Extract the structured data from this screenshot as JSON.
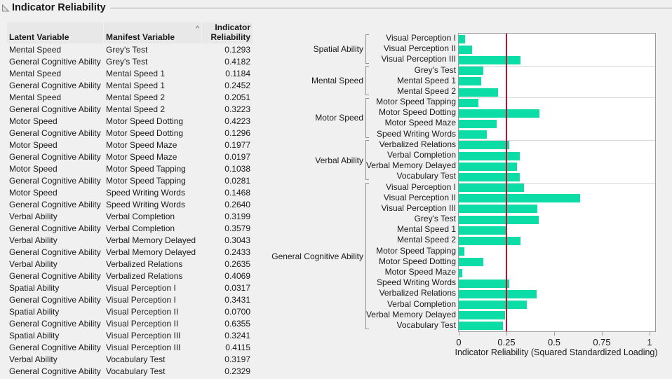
{
  "title": "Indicator Reliability",
  "table": {
    "columns": [
      {
        "label": "Latent Variable"
      },
      {
        "label": "Manifest Variable",
        "sort_indicator": "^"
      },
      {
        "label": "Indicator Reliability"
      }
    ],
    "rows": [
      {
        "latent": "Mental Speed",
        "manifest": "Grey's Test",
        "value": "0.1293"
      },
      {
        "latent": "General Cognitive Ability",
        "manifest": "Grey's Test",
        "value": "0.4182"
      },
      {
        "latent": "Mental Speed",
        "manifest": "Mental Speed 1",
        "value": "0.1184"
      },
      {
        "latent": "General Cognitive Ability",
        "manifest": "Mental Speed 1",
        "value": "0.2452"
      },
      {
        "latent": "Mental Speed",
        "manifest": "Mental Speed 2",
        "value": "0.2051"
      },
      {
        "latent": "General Cognitive Ability",
        "manifest": "Mental Speed 2",
        "value": "0.3223"
      },
      {
        "latent": "Motor Speed",
        "manifest": "Motor Speed Dotting",
        "value": "0.4223"
      },
      {
        "latent": "General Cognitive Ability",
        "manifest": "Motor Speed Dotting",
        "value": "0.1296"
      },
      {
        "latent": "Motor Speed",
        "manifest": "Motor Speed Maze",
        "value": "0.1977"
      },
      {
        "latent": "General Cognitive Ability",
        "manifest": "Motor Speed Maze",
        "value": "0.0197"
      },
      {
        "latent": "Motor Speed",
        "manifest": "Motor Speed Tapping",
        "value": "0.1038"
      },
      {
        "latent": "General Cognitive Ability",
        "manifest": "Motor Speed Tapping",
        "value": "0.0281"
      },
      {
        "latent": "Motor Speed",
        "manifest": "Speed Writing Words",
        "value": "0.1468"
      },
      {
        "latent": "General Cognitive Ability",
        "manifest": "Speed Writing Words",
        "value": "0.2640"
      },
      {
        "latent": "Verbal Ability",
        "manifest": "Verbal Completion",
        "value": "0.3199"
      },
      {
        "latent": "General Cognitive Ability",
        "manifest": "Verbal Completion",
        "value": "0.3579"
      },
      {
        "latent": "Verbal Ability",
        "manifest": "Verbal Memory Delayed",
        "value": "0.3043"
      },
      {
        "latent": "General Cognitive Ability",
        "manifest": "Verbal Memory Delayed",
        "value": "0.2433"
      },
      {
        "latent": "Verbal Ability",
        "manifest": "Verbalized Relations",
        "value": "0.2635"
      },
      {
        "latent": "General Cognitive Ability",
        "manifest": "Verbalized Relations",
        "value": "0.4069"
      },
      {
        "latent": "Spatial Ability",
        "manifest": "Visual Perception I",
        "value": "0.0317"
      },
      {
        "latent": "General Cognitive Ability",
        "manifest": "Visual Perception I",
        "value": "0.3431"
      },
      {
        "latent": "Spatial Ability",
        "manifest": "Visual Perception II",
        "value": "0.0700"
      },
      {
        "latent": "General Cognitive Ability",
        "manifest": "Visual Perception II",
        "value": "0.6355"
      },
      {
        "latent": "Spatial Ability",
        "manifest": "Visual Perception III",
        "value": "0.3241"
      },
      {
        "latent": "General Cognitive Ability",
        "manifest": "Visual Perception III",
        "value": "0.4115"
      },
      {
        "latent": "Verbal Ability",
        "manifest": "Vocabulary Test",
        "value": "0.3197"
      },
      {
        "latent": "General Cognitive Ability",
        "manifest": "Vocabulary Test",
        "value": "0.2329"
      }
    ]
  },
  "chart_data": {
    "type": "bar",
    "orientation": "horizontal",
    "xlabel": "Indicator Reliability (Squared Standardized Loading)",
    "xlim": [
      0,
      1.03
    ],
    "x_ticks": [
      0,
      0.25,
      0.5,
      0.75,
      1
    ],
    "x_tick_labels": [
      "0",
      "0.25",
      "0.5",
      "0.75",
      "1"
    ],
    "reference_line_x": 0.25,
    "bar_color": "#0cdca6",
    "reference_line_color": "#c00f2a",
    "grid": false,
    "legend": "none",
    "groups": [
      {
        "label": "Spatial Ability",
        "items": [
          {
            "label": "Visual Perception I",
            "value": 0.0317
          },
          {
            "label": "Visual Perception II",
            "value": 0.07
          },
          {
            "label": "Visual Perception III",
            "value": 0.3241
          }
        ]
      },
      {
        "label": "Mental Speed",
        "items": [
          {
            "label": "Grey's Test",
            "value": 0.1293
          },
          {
            "label": "Mental Speed 1",
            "value": 0.1184
          },
          {
            "label": "Mental Speed 2",
            "value": 0.2051
          }
        ]
      },
      {
        "label": "Motor Speed",
        "items": [
          {
            "label": "Motor Speed Tapping",
            "value": 0.1038
          },
          {
            "label": "Motor Speed Dotting",
            "value": 0.4223
          },
          {
            "label": "Motor Speed Maze",
            "value": 0.1977
          },
          {
            "label": "Speed Writing Words",
            "value": 0.1468
          }
        ]
      },
      {
        "label": "Verbal Ability",
        "items": [
          {
            "label": "Verbalized Relations",
            "value": 0.2635
          },
          {
            "label": "Verbal Completion",
            "value": 0.3199
          },
          {
            "label": "Verbal Memory Delayed",
            "value": 0.3043
          },
          {
            "label": "Vocabulary Test",
            "value": 0.3197
          }
        ]
      },
      {
        "label": "General Cognitive Ability",
        "items": [
          {
            "label": "Visual Perception I",
            "value": 0.3431
          },
          {
            "label": "Visual Perception II",
            "value": 0.6355
          },
          {
            "label": "Visual Perception III",
            "value": 0.4115
          },
          {
            "label": "Grey's Test",
            "value": 0.4182
          },
          {
            "label": "Mental Speed 1",
            "value": 0.2452
          },
          {
            "label": "Mental Speed 2",
            "value": 0.3223
          },
          {
            "label": "Motor Speed Tapping",
            "value": 0.0281
          },
          {
            "label": "Motor Speed Dotting",
            "value": 0.1296
          },
          {
            "label": "Motor Speed Maze",
            "value": 0.0197
          },
          {
            "label": "Speed Writing Words",
            "value": 0.264
          },
          {
            "label": "Verbalized Relations",
            "value": 0.4069
          },
          {
            "label": "Verbal Completion",
            "value": 0.3579
          },
          {
            "label": "Verbal Memory Delayed",
            "value": 0.2433
          },
          {
            "label": "Vocabulary Test",
            "value": 0.2329
          }
        ]
      }
    ]
  }
}
